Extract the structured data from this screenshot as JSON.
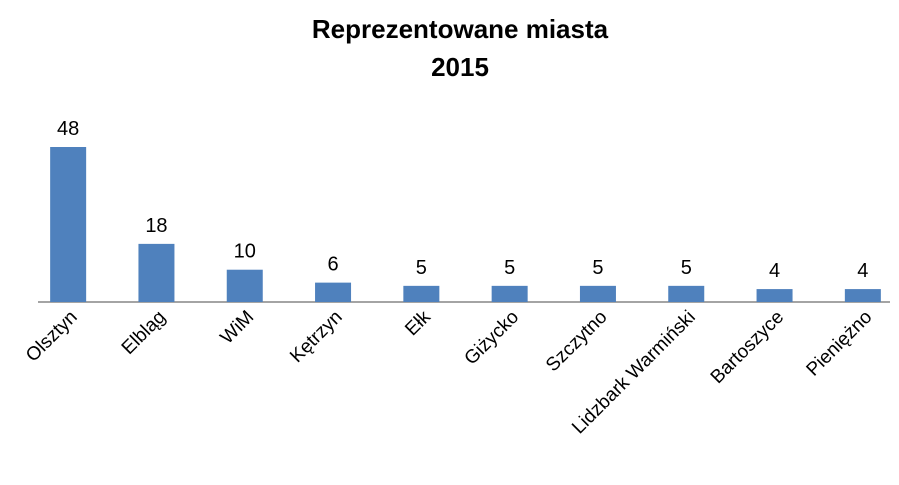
{
  "chart_data": {
    "type": "bar",
    "title": "Reprezentowane miasta",
    "subtitle": "2015",
    "categories": [
      "Olsztyn",
      "Elbląg",
      "WiM",
      "Kętrzyn",
      "Ełk",
      "Giżycko",
      "Szczytno",
      "Lidzbark Warmiński",
      "Bartoszyce",
      "Pieniężno"
    ],
    "values": [
      48,
      18,
      10,
      6,
      5,
      5,
      5,
      5,
      4,
      4
    ],
    "color": "#4f81bd"
  }
}
